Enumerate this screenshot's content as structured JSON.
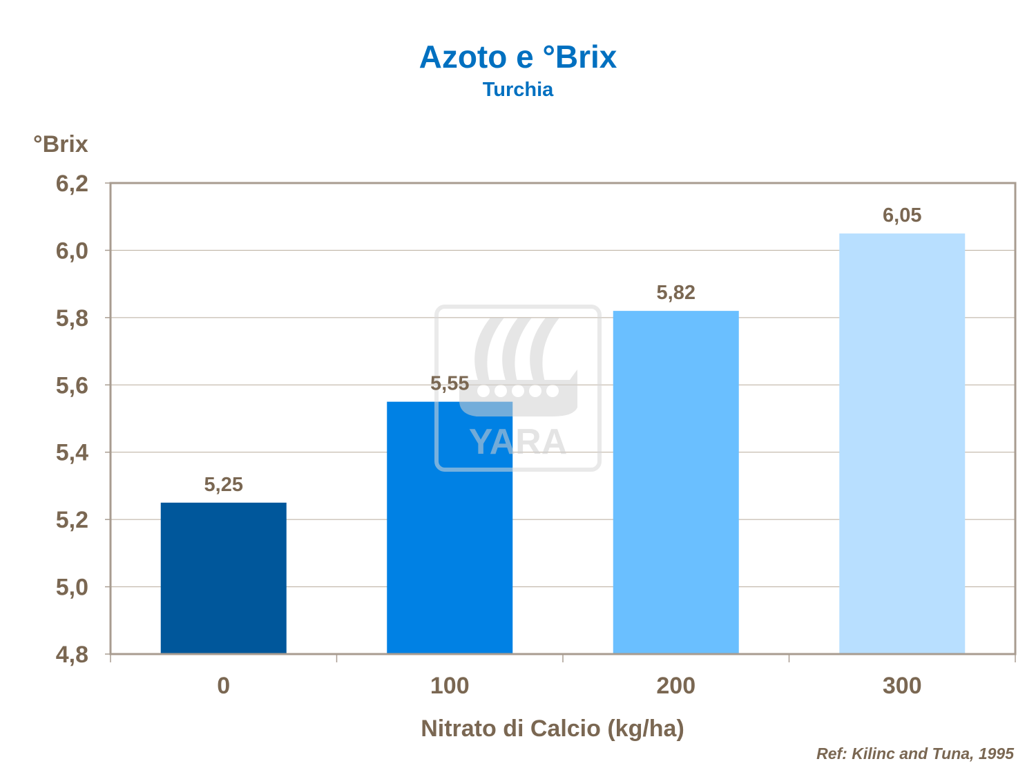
{
  "chart_data": {
    "type": "bar",
    "title": "Azoto e °Brix",
    "subtitle": "Turchia",
    "xlabel": "Nitrato di Calcio (kg/ha)",
    "ylabel": "°Brix",
    "categories": [
      "0",
      "100",
      "200",
      "300"
    ],
    "values": [
      5.25,
      5.55,
      5.82,
      6.05
    ],
    "data_labels": [
      "5,25",
      "5,55",
      "5,82",
      "6,05"
    ],
    "colors": [
      "#00579b",
      "#0081e4",
      "#6abfff",
      "#b8dfff"
    ],
    "ylim": [
      4.8,
      6.2
    ],
    "yticks": [
      4.8,
      5.0,
      5.2,
      5.4,
      5.6,
      5.8,
      6.0,
      6.2
    ],
    "ytick_labels": [
      "4,8",
      "5,0",
      "5,2",
      "5,4",
      "5,6",
      "5,8",
      "6,0",
      "6,2"
    ],
    "grid": true,
    "legend": "none"
  },
  "reference": "Ref: Kilinc  and Tuna,  1995",
  "watermark": "YARA",
  "colors": {
    "title": "#0070c0",
    "text": "#7a6752",
    "grid": "#b8ab9c",
    "frame": "#a89c90"
  }
}
